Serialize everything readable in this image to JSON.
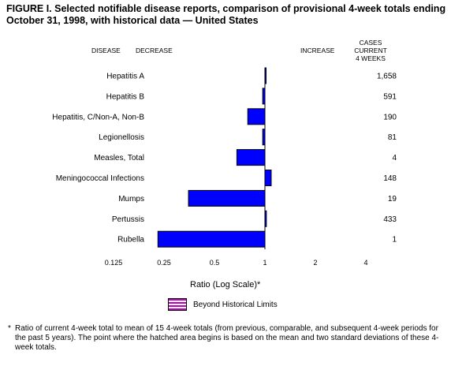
{
  "title": "FIGURE I. Selected notifiable disease reports, comparison of provisional 4-week totals ending October 31, 1998, with historical data — United States",
  "headers": {
    "disease": "DISEASE",
    "decrease": "DECREASE",
    "increase": "INCREASE",
    "cases_line1": "CASES CURRENT",
    "cases_line2": "4 WEEKS"
  },
  "legend": {
    "label": "Beyond Historical Limits"
  },
  "footnote": {
    "mark": "*",
    "text": "Ratio of current 4-week total to mean of 15 4-week totals (from previous, comparable, and subsequent 4-week periods for the past 5 years). The point where the hatched area begins is based on the mean and two standard deviations of these 4-week totals."
  },
  "colors": {
    "bar": "#0000ff",
    "hatch": "#c000c0"
  },
  "chart_data": {
    "type": "bar",
    "orientation": "horizontal",
    "log_scale": true,
    "log_base": 2,
    "xlabel": "Ratio (Log Scale)*",
    "xlim": [
      0.125,
      4
    ],
    "x_ticks": [
      0.125,
      0.25,
      0.5,
      1,
      2,
      4
    ],
    "x_tick_labels": [
      "0.125",
      "0.25",
      "0.5",
      "1",
      "2",
      "4"
    ],
    "categories": [
      "Hepatitis A",
      "Hepatitis B",
      "Hepatitis, C/Non-A, Non-B",
      "Legionellosis",
      "Measles, Total",
      "Meningococcal Infections",
      "Mumps",
      "Pertussis",
      "Rubella"
    ],
    "values": [
      1.0,
      0.97,
      0.79,
      0.97,
      0.68,
      1.09,
      0.35,
      1.02,
      0.23
    ],
    "cases_current_4_weeks": [
      "1,658",
      "591",
      "190",
      "81",
      "4",
      "148",
      "19",
      "433",
      "1"
    ],
    "grid": false
  }
}
